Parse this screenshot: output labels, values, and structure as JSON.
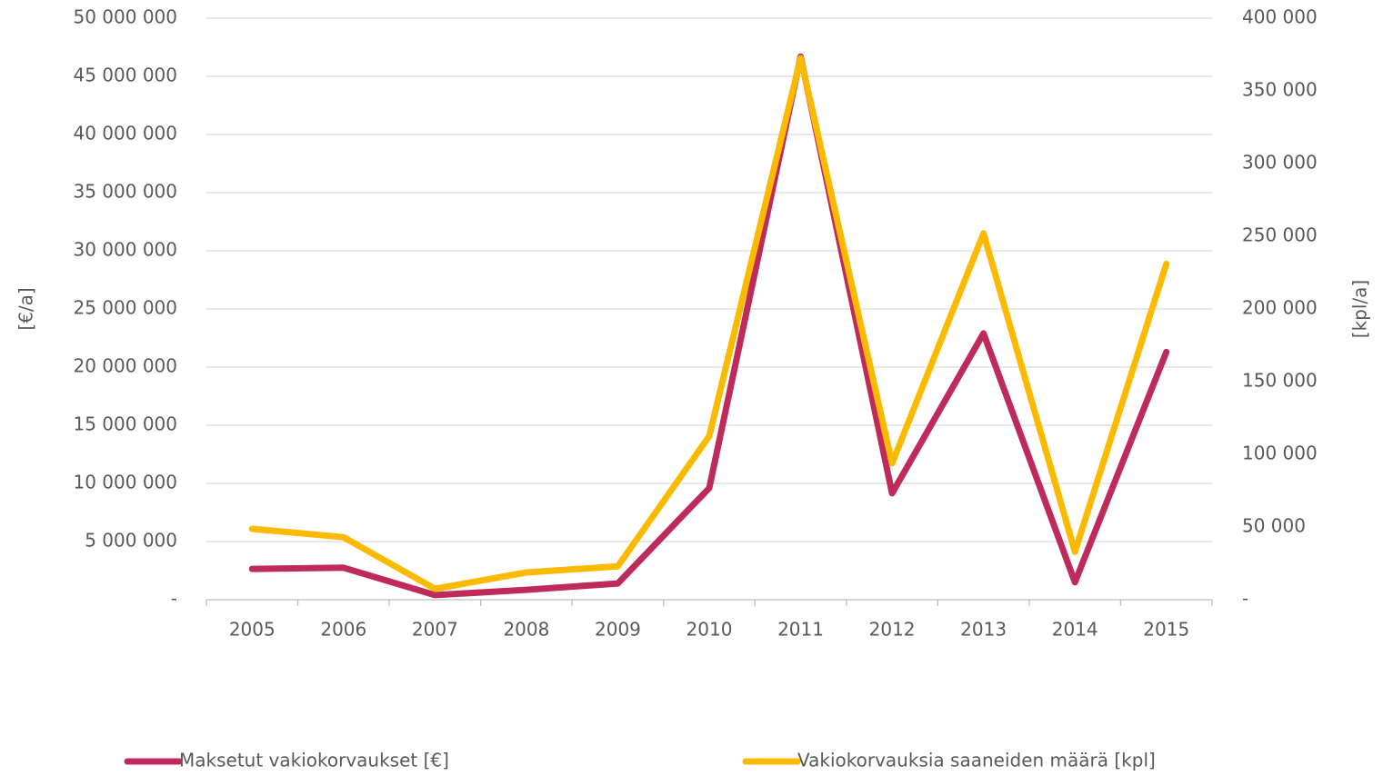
{
  "chart_data": {
    "type": "line",
    "y_label": "[€/a]",
    "y2_label": "[kpl/a]",
    "categories": [
      "2005",
      "2006",
      "2007",
      "2008",
      "2009",
      "2010",
      "2011",
      "2012",
      "2013",
      "2014",
      "2015"
    ],
    "series": [
      {
        "name": "Maksetut vakiokorvaukset [€]",
        "color": "#be2b5a",
        "axis": "y",
        "values": [
          2650000,
          2750000,
          400000,
          850000,
          1400000,
          9600000,
          46700000,
          9150000,
          22900000,
          1500000,
          21300000
        ]
      },
      {
        "name": "Vakiokorvauksia saaneiden määrä [kpl]",
        "color": "#fbb900",
        "axis": "y2",
        "values": [
          48750,
          43000,
          7500,
          18750,
          23000,
          112500,
          372500,
          93750,
          252000,
          33000,
          231000
        ]
      }
    ],
    "ylim": [
      0,
      50000000
    ],
    "yticks": [
      {
        "value": 0,
        "label": "-"
      },
      {
        "value": 5000000,
        "label": "5 000 000"
      },
      {
        "value": 10000000,
        "label": "10 000 000"
      },
      {
        "value": 15000000,
        "label": "15 000 000"
      },
      {
        "value": 20000000,
        "label": "20 000 000"
      },
      {
        "value": 25000000,
        "label": "25 000 000"
      },
      {
        "value": 30000000,
        "label": "30 000 000"
      },
      {
        "value": 35000000,
        "label": "35 000 000"
      },
      {
        "value": 40000000,
        "label": "40 000 000"
      },
      {
        "value": 45000000,
        "label": "45 000 000"
      },
      {
        "value": 50000000,
        "label": "50 000 000"
      }
    ],
    "y2lim": [
      0,
      400000
    ],
    "y2ticks": [
      {
        "value": 0,
        "label": "-"
      },
      {
        "value": 50000,
        "label": "50 000"
      },
      {
        "value": 100000,
        "label": "100 000"
      },
      {
        "value": 150000,
        "label": "150 000"
      },
      {
        "value": 200000,
        "label": "200 000"
      },
      {
        "value": 250000,
        "label": "250 000"
      },
      {
        "value": 300000,
        "label": "300 000"
      },
      {
        "value": 350000,
        "label": "350 000"
      },
      {
        "value": 400000,
        "label": "400 000"
      }
    ],
    "grid": true,
    "legend": "bottom"
  }
}
